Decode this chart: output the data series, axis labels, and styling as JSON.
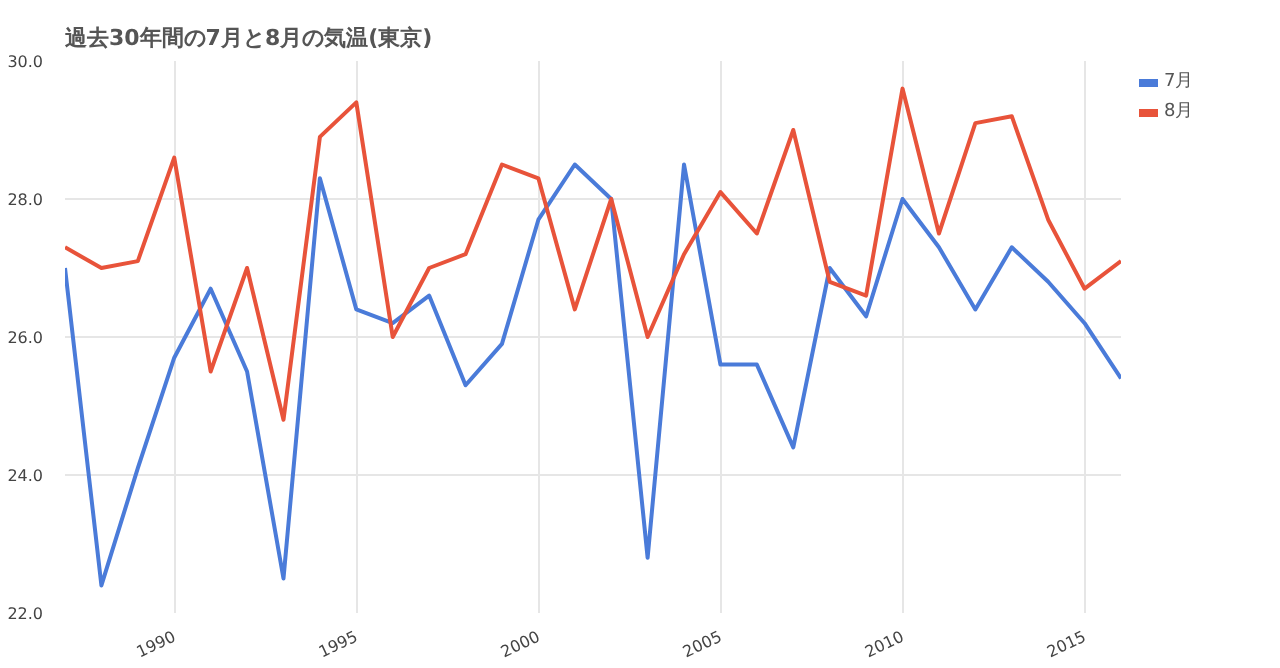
{
  "chart_data": {
    "type": "line",
    "title": "過去30年間の7月と8月の気温(東京)",
    "x": [
      1987,
      1988,
      1989,
      1990,
      1991,
      1992,
      1993,
      1994,
      1995,
      1996,
      1997,
      1998,
      1999,
      2000,
      2001,
      2002,
      2003,
      2004,
      2005,
      2006,
      2007,
      2008,
      2009,
      2010,
      2011,
      2012,
      2013,
      2014,
      2015,
      2016
    ],
    "series": [
      {
        "name": "7月",
        "color": "#4a7bd9",
        "values": [
          27.0,
          22.4,
          24.1,
          25.7,
          26.7,
          25.5,
          22.5,
          28.3,
          26.4,
          26.2,
          26.6,
          25.3,
          25.9,
          27.7,
          28.5,
          28.0,
          22.8,
          28.5,
          25.6,
          25.6,
          24.4,
          27.0,
          26.3,
          28.0,
          27.3,
          26.4,
          27.3,
          26.8,
          26.2,
          25.4
        ]
      },
      {
        "name": "8月",
        "color": "#e8533a",
        "values": [
          27.3,
          27.0,
          27.1,
          28.6,
          25.5,
          27.0,
          24.8,
          28.9,
          29.4,
          26.0,
          27.0,
          27.2,
          28.5,
          28.3,
          26.4,
          28.0,
          26.0,
          27.2,
          28.1,
          27.5,
          29.0,
          26.8,
          26.6,
          29.6,
          27.5,
          29.1,
          29.2,
          27.7,
          26.7,
          27.1
        ]
      }
    ],
    "xlim": [
      1987,
      2016
    ],
    "xticks": [
      1990,
      1995,
      2000,
      2005,
      2010,
      2015
    ],
    "ylim": [
      22,
      30
    ],
    "yticks": [
      {
        "value": 22,
        "label": "22.0"
      },
      {
        "value": 24,
        "label": "24.0"
      },
      {
        "value": 26,
        "label": "26.0"
      },
      {
        "value": 28,
        "label": "28.0"
      },
      {
        "value": 30,
        "label": "30.0"
      }
    ],
    "grid": true,
    "legend": "top right",
    "marker": "none",
    "line_style": "solid"
  }
}
